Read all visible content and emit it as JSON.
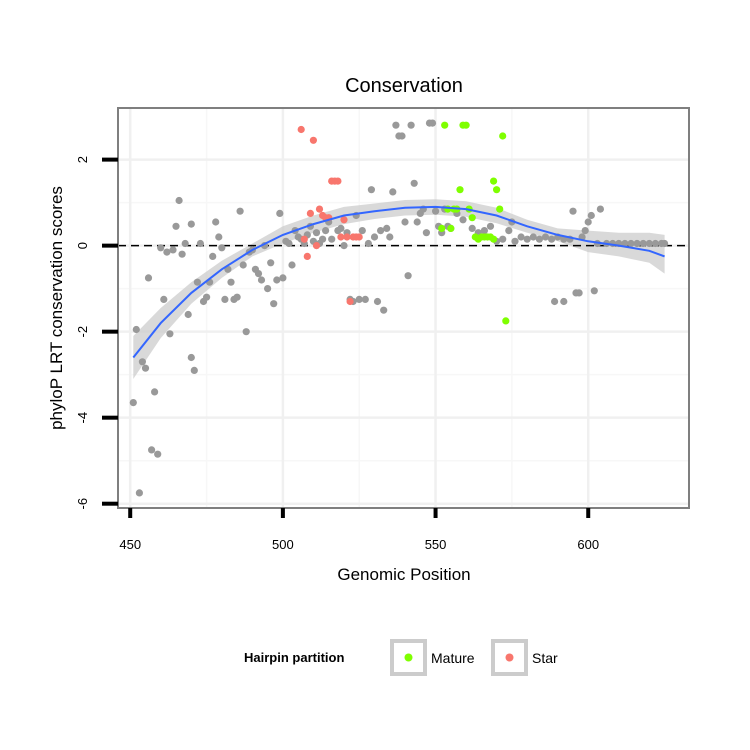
{
  "chart_data": {
    "type": "scatter",
    "title": "Conservation",
    "xlabel": "Genomic Position",
    "ylabel": "phyloP LRT conservation scores",
    "xlim": [
      446,
      633
    ],
    "ylim": [
      -6.1,
      3.2
    ],
    "x_ticks": [
      450,
      500,
      550,
      600
    ],
    "y_ticks": [
      -6,
      -4,
      -2,
      0,
      2
    ],
    "reference_line": {
      "y": 0,
      "style": "dashed"
    },
    "colors": {
      "Other": "#999999",
      "Mature": "#7FFF00",
      "Star": "#F8766D",
      "smooth_line": "#3366FF",
      "ribbon": "#CCCCCC",
      "panel_border": "#7F7F7F"
    },
    "legend": {
      "title": "Hairpin partition",
      "position": "bottom",
      "entries": [
        {
          "label": "Mature",
          "key": "Mature"
        },
        {
          "label": "Star",
          "key": "Star"
        }
      ]
    },
    "series": [
      {
        "name": "Other",
        "points": [
          [
            451,
            -3.65
          ],
          [
            452,
            -1.95
          ],
          [
            453,
            -5.75
          ],
          [
            454,
            -2.7
          ],
          [
            455,
            -2.85
          ],
          [
            456,
            -0.75
          ],
          [
            457,
            -4.75
          ],
          [
            458,
            -3.4
          ],
          [
            459,
            -4.85
          ],
          [
            460,
            -0.05
          ],
          [
            461,
            -1.25
          ],
          [
            462,
            -0.15
          ],
          [
            463,
            -2.05
          ],
          [
            464,
            -0.1
          ],
          [
            465,
            0.45
          ],
          [
            466,
            1.05
          ],
          [
            467,
            -0.2
          ],
          [
            468,
            0.05
          ],
          [
            469,
            -1.6
          ],
          [
            470,
            0.5
          ],
          [
            470,
            -2.6
          ],
          [
            471,
            -2.9
          ],
          [
            472,
            -0.85
          ],
          [
            473,
            0.05
          ],
          [
            474,
            -1.3
          ],
          [
            475,
            -1.2
          ],
          [
            476,
            -0.85
          ],
          [
            477,
            -0.25
          ],
          [
            478,
            0.55
          ],
          [
            479,
            0.2
          ],
          [
            480,
            -0.05
          ],
          [
            481,
            -1.25
          ],
          [
            482,
            -0.55
          ],
          [
            483,
            -0.85
          ],
          [
            484,
            -1.25
          ],
          [
            485,
            -1.2
          ],
          [
            486,
            0.8
          ],
          [
            487,
            -0.45
          ],
          [
            488,
            -2.0
          ],
          [
            489,
            -0.15
          ],
          [
            490,
            -0.1
          ],
          [
            491,
            -0.55
          ],
          [
            492,
            -0.65
          ],
          [
            493,
            -0.8
          ],
          [
            494,
            0.0
          ],
          [
            495,
            -1.0
          ],
          [
            496,
            -0.4
          ],
          [
            497,
            -1.35
          ],
          [
            498,
            -0.8
          ],
          [
            499,
            0.75
          ],
          [
            500,
            -0.75
          ],
          [
            501,
            0.1
          ],
          [
            502,
            0.05
          ],
          [
            503,
            -0.45
          ],
          [
            504,
            0.35
          ],
          [
            505,
            0.2
          ],
          [
            506,
            0.15
          ],
          [
            507,
            0.05
          ],
          [
            508,
            0.25
          ],
          [
            509,
            0.45
          ],
          [
            510,
            0.1
          ],
          [
            511,
            0.3
          ],
          [
            512,
            0.05
          ],
          [
            513,
            0.15
          ],
          [
            514,
            0.35
          ],
          [
            515,
            0.55
          ],
          [
            516,
            0.15
          ],
          [
            518,
            0.35
          ],
          [
            519,
            0.4
          ],
          [
            520,
            0.0
          ],
          [
            521,
            0.3
          ],
          [
            522,
            -1.25
          ],
          [
            523,
            -1.3
          ],
          [
            524,
            0.7
          ],
          [
            525,
            -1.25
          ],
          [
            526,
            0.35
          ],
          [
            527,
            -1.25
          ],
          [
            528,
            0.05
          ],
          [
            529,
            1.3
          ],
          [
            530,
            0.2
          ],
          [
            531,
            -1.3
          ],
          [
            532,
            0.35
          ],
          [
            533,
            -1.5
          ],
          [
            534,
            0.4
          ],
          [
            535,
            0.2
          ],
          [
            536,
            1.25
          ],
          [
            537,
            2.8
          ],
          [
            538,
            2.55
          ],
          [
            539,
            2.55
          ],
          [
            540,
            0.55
          ],
          [
            541,
            -0.7
          ],
          [
            542,
            2.8
          ],
          [
            543,
            1.45
          ],
          [
            544,
            0.55
          ],
          [
            545,
            0.75
          ],
          [
            546,
            0.85
          ],
          [
            547,
            0.3
          ],
          [
            548,
            2.85
          ],
          [
            549,
            2.85
          ],
          [
            550,
            0.8
          ],
          [
            551,
            0.45
          ],
          [
            552,
            0.3
          ],
          [
            553,
            0.85
          ],
          [
            554,
            0.45
          ],
          [
            555,
            0.4
          ],
          [
            557,
            0.75
          ],
          [
            559,
            0.6
          ],
          [
            562,
            0.4
          ],
          [
            564,
            0.3
          ],
          [
            566,
            0.35
          ],
          [
            568,
            0.45
          ],
          [
            570,
            0.1
          ],
          [
            572,
            0.15
          ],
          [
            574,
            0.35
          ],
          [
            575,
            0.55
          ],
          [
            576,
            0.1
          ],
          [
            578,
            0.2
          ],
          [
            580,
            0.15
          ],
          [
            582,
            0.2
          ],
          [
            584,
            0.15
          ],
          [
            586,
            0.2
          ],
          [
            588,
            0.15
          ],
          [
            590,
            0.2
          ],
          [
            592,
            0.15
          ],
          [
            594,
            0.15
          ],
          [
            595,
            0.8
          ],
          [
            596,
            -1.1
          ],
          [
            597,
            -1.1
          ],
          [
            598,
            0.2
          ],
          [
            599,
            0.35
          ],
          [
            600,
            0.55
          ],
          [
            601,
            0.7
          ],
          [
            602,
            -1.05
          ],
          [
            603,
            0.05
          ],
          [
            604,
            0.85
          ],
          [
            606,
            0.05
          ],
          [
            608,
            0.05
          ],
          [
            610,
            0.05
          ],
          [
            612,
            0.05
          ],
          [
            614,
            0.05
          ],
          [
            616,
            0.05
          ],
          [
            618,
            0.05
          ],
          [
            620,
            0.05
          ],
          [
            622,
            0.05
          ],
          [
            624,
            0.05
          ],
          [
            625,
            0.05
          ],
          [
            589,
            -1.3
          ],
          [
            592,
            -1.3
          ]
        ]
      },
      {
        "name": "Mature",
        "points": [
          [
            552,
            0.4
          ],
          [
            553,
            2.8
          ],
          [
            554,
            0.85
          ],
          [
            555,
            0.4
          ],
          [
            556,
            0.85
          ],
          [
            557,
            0.85
          ],
          [
            558,
            1.3
          ],
          [
            559,
            2.8
          ],
          [
            560,
            2.8
          ],
          [
            561,
            0.85
          ],
          [
            562,
            0.65
          ],
          [
            563,
            0.2
          ],
          [
            564,
            0.15
          ],
          [
            565,
            0.2
          ],
          [
            566,
            0.2
          ],
          [
            567,
            0.2
          ],
          [
            568,
            0.2
          ],
          [
            569,
            0.15
          ],
          [
            569,
            1.5
          ],
          [
            570,
            1.3
          ],
          [
            571,
            0.85
          ],
          [
            572,
            2.55
          ],
          [
            573,
            -1.75
          ]
        ]
      },
      {
        "name": "Star",
        "points": [
          [
            506,
            2.7
          ],
          [
            507,
            0.15
          ],
          [
            508,
            -0.25
          ],
          [
            509,
            0.75
          ],
          [
            510,
            2.45
          ],
          [
            511,
            0.0
          ],
          [
            512,
            0.85
          ],
          [
            513,
            0.7
          ],
          [
            514,
            0.65
          ],
          [
            515,
            0.65
          ],
          [
            516,
            1.5
          ],
          [
            517,
            1.5
          ],
          [
            518,
            1.5
          ],
          [
            519,
            0.2
          ],
          [
            520,
            0.6
          ],
          [
            521,
            0.2
          ],
          [
            522,
            -1.3
          ],
          [
            523,
            0.2
          ],
          [
            524,
            0.2
          ],
          [
            525,
            0.2
          ]
        ]
      }
    ],
    "smooth": {
      "method": "loess",
      "curve": [
        [
          451,
          -2.6
        ],
        [
          460,
          -1.8
        ],
        [
          470,
          -1.1
        ],
        [
          480,
          -0.55
        ],
        [
          490,
          -0.1
        ],
        [
          500,
          0.25
        ],
        [
          510,
          0.5
        ],
        [
          520,
          0.7
        ],
        [
          530,
          0.8
        ],
        [
          540,
          0.88
        ],
        [
          550,
          0.9
        ],
        [
          560,
          0.85
        ],
        [
          570,
          0.7
        ],
        [
          580,
          0.45
        ],
        [
          590,
          0.25
        ],
        [
          600,
          0.1
        ],
        [
          610,
          0.0
        ],
        [
          620,
          -0.12
        ],
        [
          625,
          -0.25
        ]
      ],
      "lower": [
        [
          451,
          -3.1
        ],
        [
          460,
          -2.15
        ],
        [
          470,
          -1.35
        ],
        [
          480,
          -0.75
        ],
        [
          490,
          -0.25
        ],
        [
          500,
          0.05
        ],
        [
          510,
          0.3
        ],
        [
          520,
          0.5
        ],
        [
          530,
          0.62
        ],
        [
          540,
          0.7
        ],
        [
          550,
          0.72
        ],
        [
          560,
          0.67
        ],
        [
          570,
          0.52
        ],
        [
          580,
          0.3
        ],
        [
          590,
          0.1
        ],
        [
          600,
          -0.15
        ],
        [
          610,
          -0.25
        ],
        [
          620,
          -0.4
        ],
        [
          625,
          -0.65
        ]
      ],
      "upper": [
        [
          451,
          -2.1
        ],
        [
          460,
          -1.45
        ],
        [
          470,
          -0.85
        ],
        [
          480,
          -0.35
        ],
        [
          490,
          0.05
        ],
        [
          500,
          0.45
        ],
        [
          510,
          0.7
        ],
        [
          520,
          0.9
        ],
        [
          530,
          0.98
        ],
        [
          540,
          1.06
        ],
        [
          550,
          1.08
        ],
        [
          560,
          1.03
        ],
        [
          570,
          0.88
        ],
        [
          580,
          0.6
        ],
        [
          590,
          0.4
        ],
        [
          600,
          0.35
        ],
        [
          610,
          0.3
        ],
        [
          620,
          0.3
        ],
        [
          625,
          0.25
        ]
      ]
    }
  }
}
